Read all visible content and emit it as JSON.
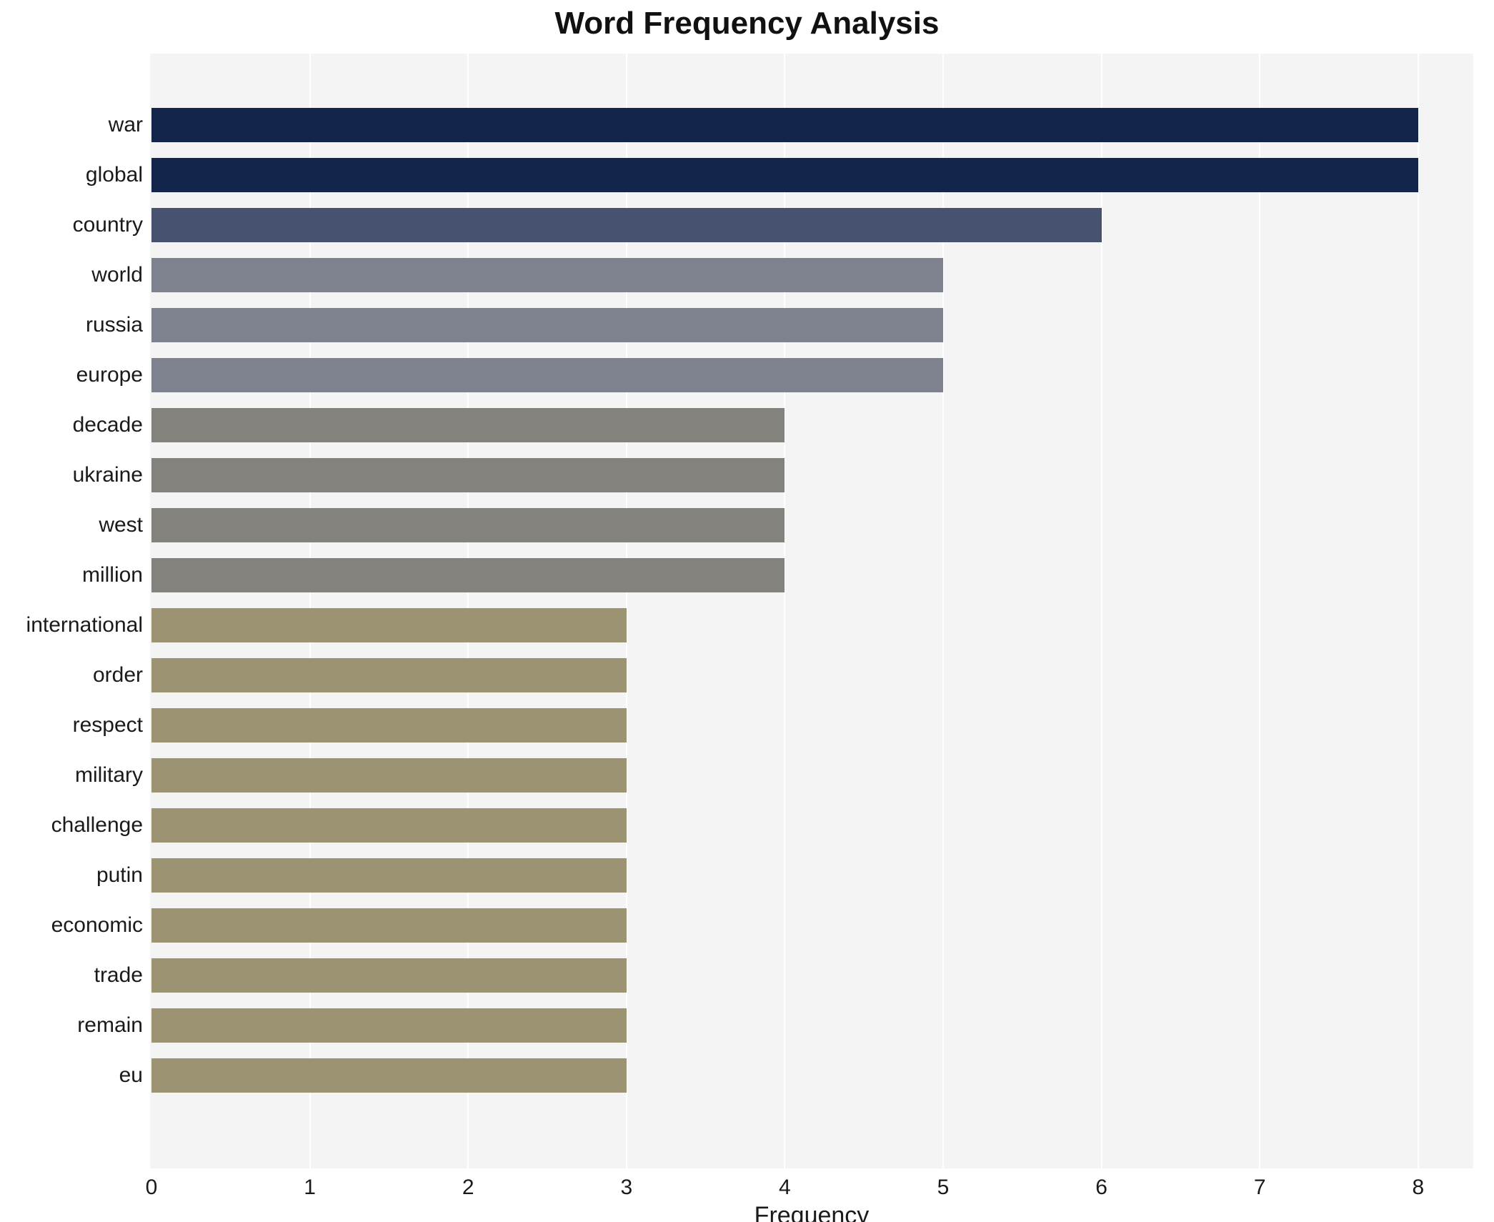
{
  "chart_data": {
    "type": "bar",
    "orientation": "horizontal",
    "title": "Word Frequency Analysis",
    "xlabel": "Frequency",
    "ylabel": "",
    "xlim": [
      0,
      8.36
    ],
    "x_ticks": [
      0,
      1,
      2,
      3,
      4,
      5,
      6,
      7,
      8
    ],
    "grid": "vertical-white-lines",
    "plot_background": "#f4f4f5",
    "categories": [
      "war",
      "global",
      "country",
      "world",
      "russia",
      "europe",
      "decade",
      "ukraine",
      "west",
      "million",
      "international",
      "order",
      "respect",
      "military",
      "challenge",
      "putin",
      "economic",
      "trade",
      "remain",
      "eu"
    ],
    "values": [
      8,
      8,
      6,
      5,
      5,
      5,
      4,
      4,
      4,
      4,
      3,
      3,
      3,
      3,
      3,
      3,
      3,
      3,
      3,
      3
    ],
    "bar_colors": [
      "#13254a",
      "#13254a",
      "#47526f",
      "#7e818e",
      "#7e818e",
      "#7e818e",
      "#84827c",
      "#84827c",
      "#84827c",
      "#84827c",
      "#9b9372",
      "#9b9372",
      "#9b9372",
      "#9b9372",
      "#9b9372",
      "#9b9372",
      "#9b9372",
      "#9b9372",
      "#9b9372",
      "#9b9372"
    ]
  }
}
